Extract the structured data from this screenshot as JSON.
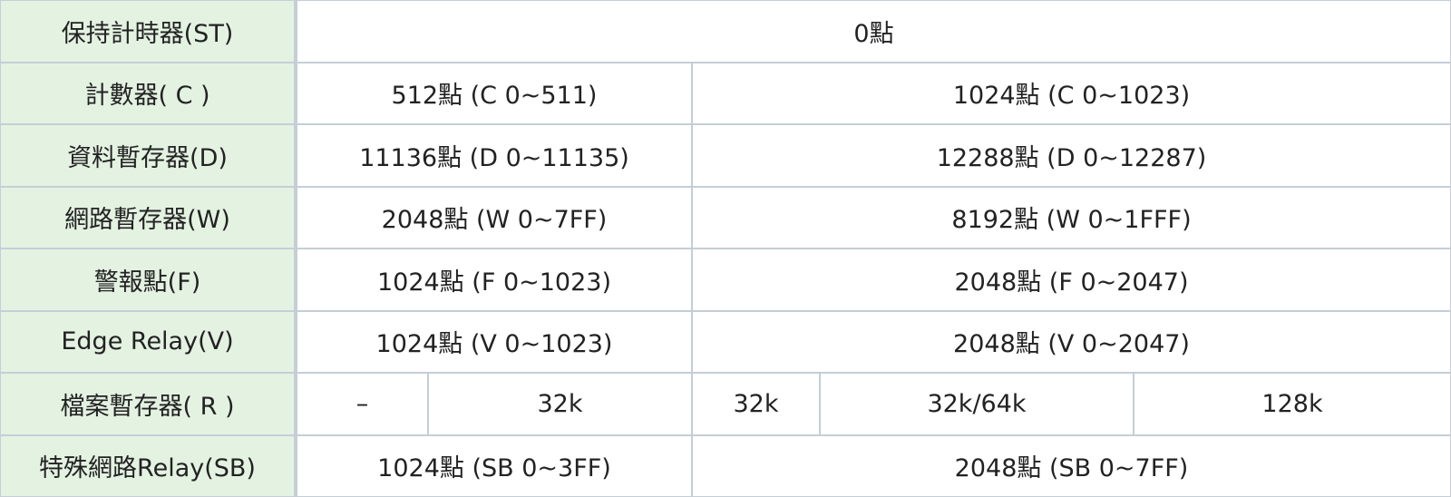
{
  "table": {
    "rows": [
      {
        "label": "保持計時器(ST)",
        "cells": [
          "0點"
        ]
      },
      {
        "label": "計數器( C )",
        "cells": [
          "512點 (C 0~511)",
          "1024點 (C 0~1023)"
        ]
      },
      {
        "label": "資料暫存器(D)",
        "cells": [
          "11136點 (D 0~11135)",
          "12288點 (D 0~12287)"
        ]
      },
      {
        "label": "網路暫存器(W)",
        "cells": [
          "2048點 (W 0~7FF)",
          "8192點 (W 0~1FFF)"
        ]
      },
      {
        "label": "警報點(F)",
        "cells": [
          "1024點 (F 0~1023)",
          "2048點 (F 0~2047)"
        ]
      },
      {
        "label": "Edge Relay(V)",
        "cells": [
          "1024點 (V 0~1023)",
          "2048點 (V 0~2047)"
        ]
      },
      {
        "label": "檔案暫存器( R )",
        "cells": [
          "–",
          "32k",
          "32k",
          "32k/64k",
          "128k"
        ]
      },
      {
        "label": "特殊網路Relay(SB)",
        "cells": [
          "1024點 (SB 0~3FF)",
          "2048點 (SB 0~7FF)"
        ]
      }
    ]
  }
}
